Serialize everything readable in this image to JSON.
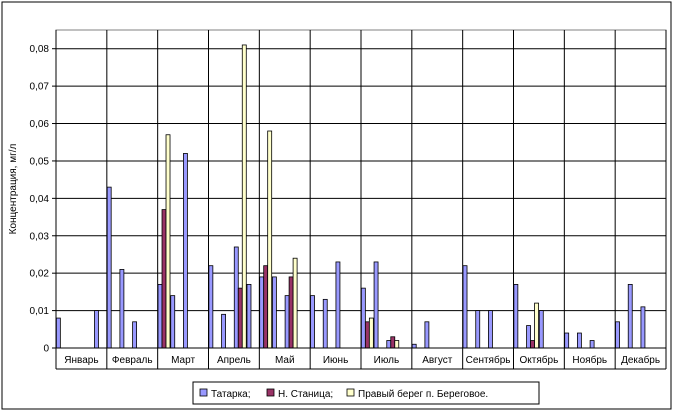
{
  "chart_data": {
    "type": "bar",
    "title": "",
    "xlabel": "",
    "ylabel": "Концентрация, мг/л",
    "ylim": [
      0,
      0.085
    ],
    "yticks": [
      "0",
      "0,01",
      "0,02",
      "0,03",
      "0,04",
      "0,05",
      "0,06",
      "0,07",
      "0,08"
    ],
    "ytick_values": [
      0,
      0.01,
      0.02,
      0.03,
      0.04,
      0.05,
      0.06,
      0.07,
      0.08
    ],
    "grid": "horizontal",
    "legend_position": "bottom",
    "categories": [
      "Январь",
      "Февраль",
      "Март",
      "Апрель",
      "Май",
      "Июнь",
      "Июль",
      "Август",
      "Сентябрь",
      "Октябрь",
      "Ноябрь",
      "Декабрь"
    ],
    "slots_per_category": 4,
    "series": [
      {
        "name": "Татарка;",
        "color": "#9999ff",
        "points": [
          {
            "month": 0,
            "slot": 0,
            "value": 0.008
          },
          {
            "month": 0,
            "slot": 3,
            "value": 0.01
          },
          {
            "month": 1,
            "slot": 0,
            "value": 0.043
          },
          {
            "month": 1,
            "slot": 1,
            "value": 0.021
          },
          {
            "month": 1,
            "slot": 2,
            "value": 0.007
          },
          {
            "month": 2,
            "slot": 0,
            "value": 0.017
          },
          {
            "month": 2,
            "slot": 1,
            "value": 0.014
          },
          {
            "month": 2,
            "slot": 2,
            "value": 0.052
          },
          {
            "month": 3,
            "slot": 0,
            "value": 0.022
          },
          {
            "month": 3,
            "slot": 1,
            "value": 0.009
          },
          {
            "month": 3,
            "slot": 2,
            "value": 0.027
          },
          {
            "month": 3,
            "slot": 3,
            "value": 0.017
          },
          {
            "month": 4,
            "slot": 0,
            "value": 0.019
          },
          {
            "month": 4,
            "slot": 1,
            "value": 0.019
          },
          {
            "month": 4,
            "slot": 2,
            "value": 0.014
          },
          {
            "month": 5,
            "slot": 0,
            "value": 0.014
          },
          {
            "month": 5,
            "slot": 1,
            "value": 0.013
          },
          {
            "month": 5,
            "slot": 2,
            "value": 0.023
          },
          {
            "month": 6,
            "slot": 0,
            "value": 0.016
          },
          {
            "month": 6,
            "slot": 1,
            "value": 0.023
          },
          {
            "month": 6,
            "slot": 2,
            "value": 0.002
          },
          {
            "month": 7,
            "slot": 0,
            "value": 0.001
          },
          {
            "month": 7,
            "slot": 1,
            "value": 0.007
          },
          {
            "month": 8,
            "slot": 0,
            "value": 0.022
          },
          {
            "month": 8,
            "slot": 1,
            "value": 0.01
          },
          {
            "month": 8,
            "slot": 2,
            "value": 0.01
          },
          {
            "month": 9,
            "slot": 0,
            "value": 0.017
          },
          {
            "month": 9,
            "slot": 1,
            "value": 0.006
          },
          {
            "month": 9,
            "slot": 2,
            "value": 0.01
          },
          {
            "month": 10,
            "slot": 0,
            "value": 0.004
          },
          {
            "month": 10,
            "slot": 1,
            "value": 0.004
          },
          {
            "month": 10,
            "slot": 2,
            "value": 0.002
          },
          {
            "month": 11,
            "slot": 0,
            "value": 0.007
          },
          {
            "month": 11,
            "slot": 1,
            "value": 0.017
          },
          {
            "month": 11,
            "slot": 2,
            "value": 0.011
          }
        ]
      },
      {
        "name": "Н. Станица;",
        "color": "#993366",
        "points": [
          {
            "month": 2,
            "slot": 0,
            "value": 0.037
          },
          {
            "month": 3,
            "slot": 2,
            "value": 0.016
          },
          {
            "month": 4,
            "slot": 0,
            "value": 0.022
          },
          {
            "month": 4,
            "slot": 2,
            "value": 0.019
          },
          {
            "month": 6,
            "slot": 0,
            "value": 0.007
          },
          {
            "month": 6,
            "slot": 2,
            "value": 0.003
          },
          {
            "month": 9,
            "slot": 1,
            "value": 0.002
          }
        ]
      },
      {
        "name": "Правый берег п. Береговое.",
        "color": "#ffffcc",
        "points": [
          {
            "month": 2,
            "slot": 0,
            "value": 0.057
          },
          {
            "month": 3,
            "slot": 2,
            "value": 0.081
          },
          {
            "month": 4,
            "slot": 0,
            "value": 0.058
          },
          {
            "month": 4,
            "slot": 2,
            "value": 0.024
          },
          {
            "month": 6,
            "slot": 0,
            "value": 0.008
          },
          {
            "month": 6,
            "slot": 2,
            "value": 0.002
          },
          {
            "month": 9,
            "slot": 1,
            "value": 0.012
          }
        ]
      }
    ]
  }
}
